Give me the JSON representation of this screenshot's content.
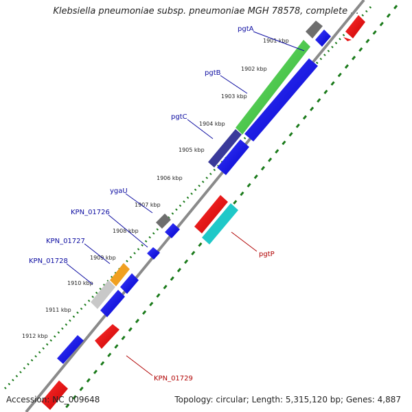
{
  "title": "Klebsiella pneumoniae subsp. pneumoniae MGH 78578, complete ...",
  "footer": {
    "accession": "Accession: NC_009648",
    "summary": "Topology: circular; Length: 5,315,120 bp; Genes: 4,887"
  },
  "ruler": {
    "ticks": [
      "1901 kbp",
      "1902 kbp",
      "1903 kbp",
      "1904 kbp",
      "1905 kbp",
      "1906 kbp",
      "1907 kbp",
      "1908 kbp",
      "1909 kbp",
      "1910 kbp",
      "1911 kbp",
      "1912 kbp"
    ]
  },
  "genes": [
    {
      "name": "pgtA",
      "strand": "forward",
      "color": "#0a0aa0"
    },
    {
      "name": "pgtB",
      "strand": "forward",
      "color": "#0a0aa0"
    },
    {
      "name": "pgtC",
      "strand": "forward",
      "color": "#0a0aa0"
    },
    {
      "name": "ygaU",
      "strand": "forward",
      "color": "#0a0aa0"
    },
    {
      "name": "KPN_01726",
      "strand": "forward",
      "color": "#0a0aa0"
    },
    {
      "name": "KPN_01727",
      "strand": "forward",
      "color": "#0a0aa0"
    },
    {
      "name": "KPN_01728",
      "strand": "forward",
      "color": "#0a0aa0"
    },
    {
      "name": "pgtP",
      "strand": "reverse",
      "color": "#b00000"
    },
    {
      "name": "KPN_01729",
      "strand": "reverse",
      "color": "#b00000"
    }
  ],
  "colors": {
    "forward_cds": "#1414e6",
    "reverse_cds": "#e61414",
    "backbone": "#8a8a8a",
    "tick_green": "#1a7a1a"
  }
}
